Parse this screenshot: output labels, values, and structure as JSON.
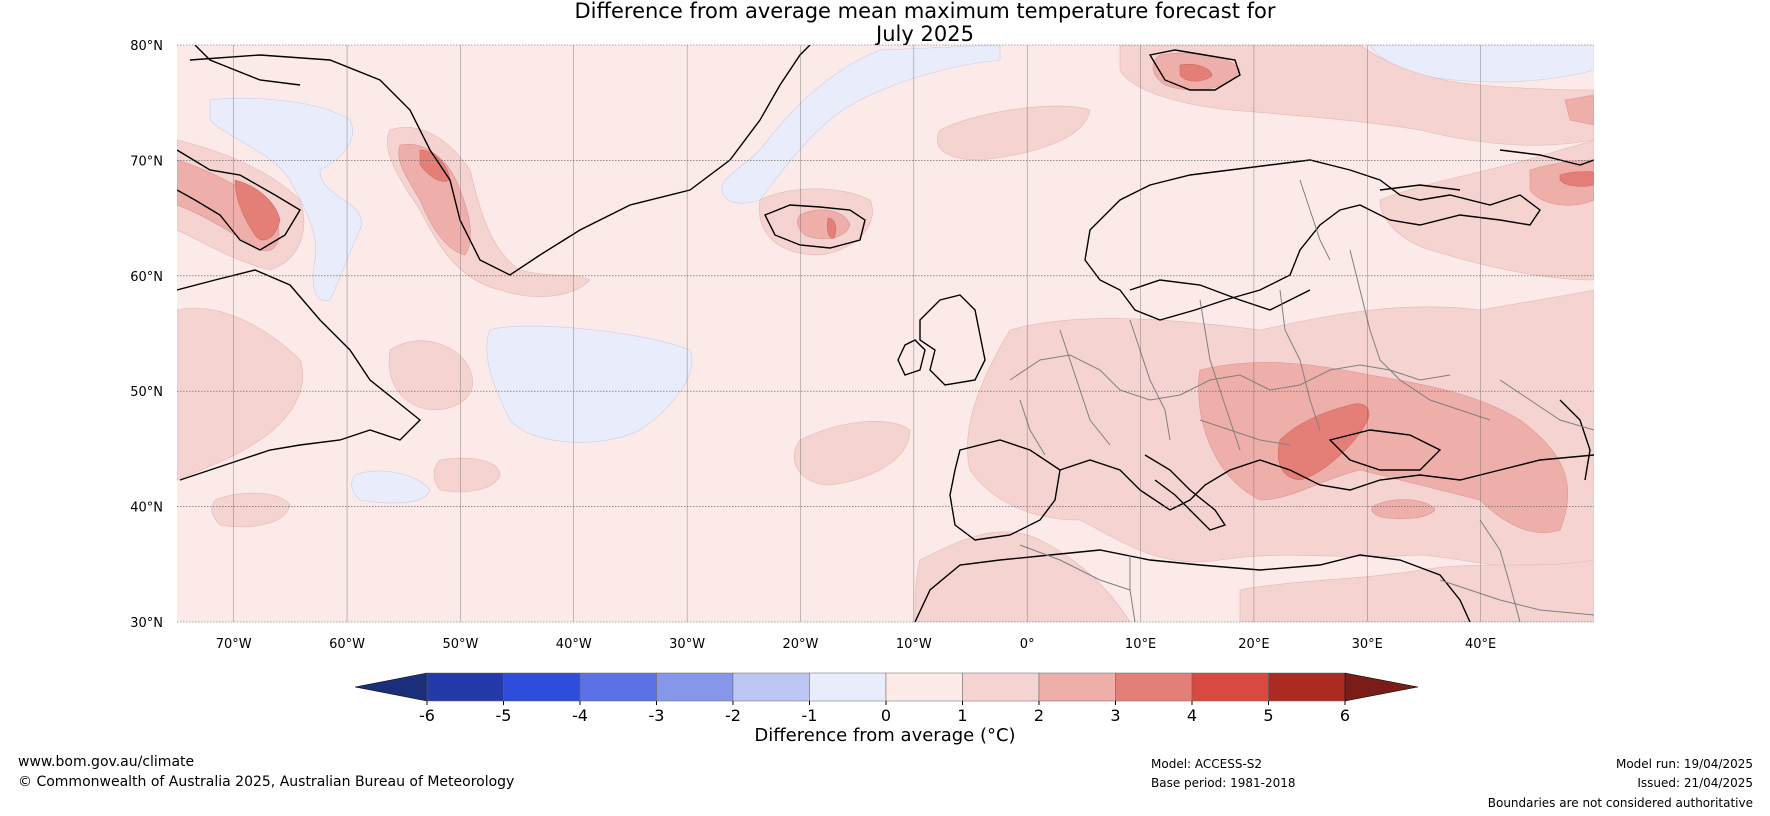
{
  "title_line1": "Difference from average mean maximum temperature forecast for",
  "title_line2": "July 2025",
  "map": {
    "lon_range": [
      -75,
      50
    ],
    "lat_range": [
      30,
      80
    ],
    "lat_ticks": [
      {
        "value": 80,
        "label": "80°N"
      },
      {
        "value": 70,
        "label": "70°N"
      },
      {
        "value": 60,
        "label": "60°N"
      },
      {
        "value": 50,
        "label": "50°N"
      },
      {
        "value": 40,
        "label": "40°N"
      },
      {
        "value": 30,
        "label": "30°N"
      }
    ],
    "lon_ticks": [
      {
        "value": -70,
        "label": "70°W"
      },
      {
        "value": -60,
        "label": "60°W"
      },
      {
        "value": -50,
        "label": "50°W"
      },
      {
        "value": -40,
        "label": "40°W"
      },
      {
        "value": -30,
        "label": "30°W"
      },
      {
        "value": -20,
        "label": "20°W"
      },
      {
        "value": -10,
        "label": "10°W"
      },
      {
        "value": 0,
        "label": "0°"
      },
      {
        "value": 10,
        "label": "10°E"
      },
      {
        "value": 20,
        "label": "20°E"
      },
      {
        "value": 30,
        "label": "30°E"
      },
      {
        "value": 40,
        "label": "40°E"
      }
    ],
    "background_color": "#fbeae8"
  },
  "colorbar": {
    "label": "Difference from average (°C)",
    "ticks": [
      "-6",
      "-5",
      "-4",
      "-3",
      "-2",
      "-1",
      "0",
      "1",
      "2",
      "3",
      "4",
      "5",
      "6"
    ],
    "colors": [
      "#243aa9",
      "#2e4ddb",
      "#5a72e6",
      "#8697ea",
      "#bec7f3",
      "#e9ecfb",
      "#fcebe9",
      "#f5d3d1",
      "#eeaeaa",
      "#e47f77",
      "#d84a3f",
      "#ab2a22"
    ],
    "extend_low_color": "#1a2e7a",
    "extend_high_color": "#7a1c18"
  },
  "footer": {
    "website": "www.bom.gov.au/climate",
    "copyright": "© Commonwealth of Australia 2025, Australian Bureau of Meteorology",
    "model": "Model: ACCESS-S2",
    "base_period": "Base period: 1981-2018",
    "model_run": "Model run: 19/04/2025",
    "issued": "Issued: 21/04/2025",
    "disclaimer": "Boundaries are not considered authoritative"
  }
}
